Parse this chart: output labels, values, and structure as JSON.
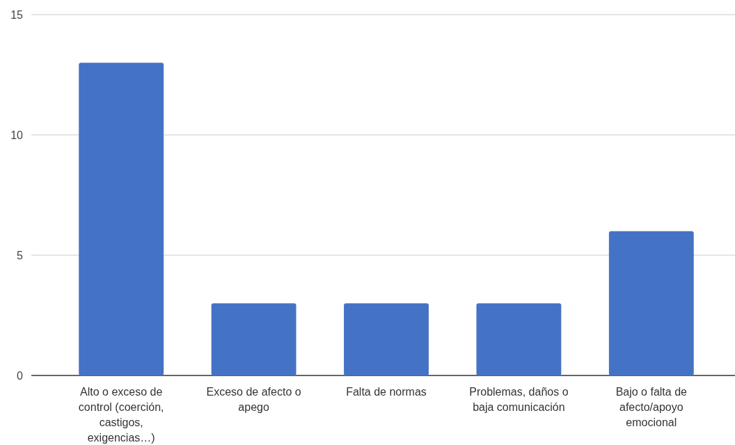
{
  "chart_data": {
    "type": "bar",
    "categories": [
      "Alto o exceso de control (coerción, castigos, exigencias…)",
      "Exceso de afecto o apego",
      "Falta de normas",
      "Problemas, daños o baja comunicación",
      "Bajo o falta de afecto/apoyo emocional"
    ],
    "values": [
      13,
      3,
      3,
      3,
      6
    ],
    "color": "#4472c4",
    "ylim": [
      0,
      15
    ],
    "yticks": [
      0,
      5,
      10,
      15
    ],
    "grid": "y"
  }
}
